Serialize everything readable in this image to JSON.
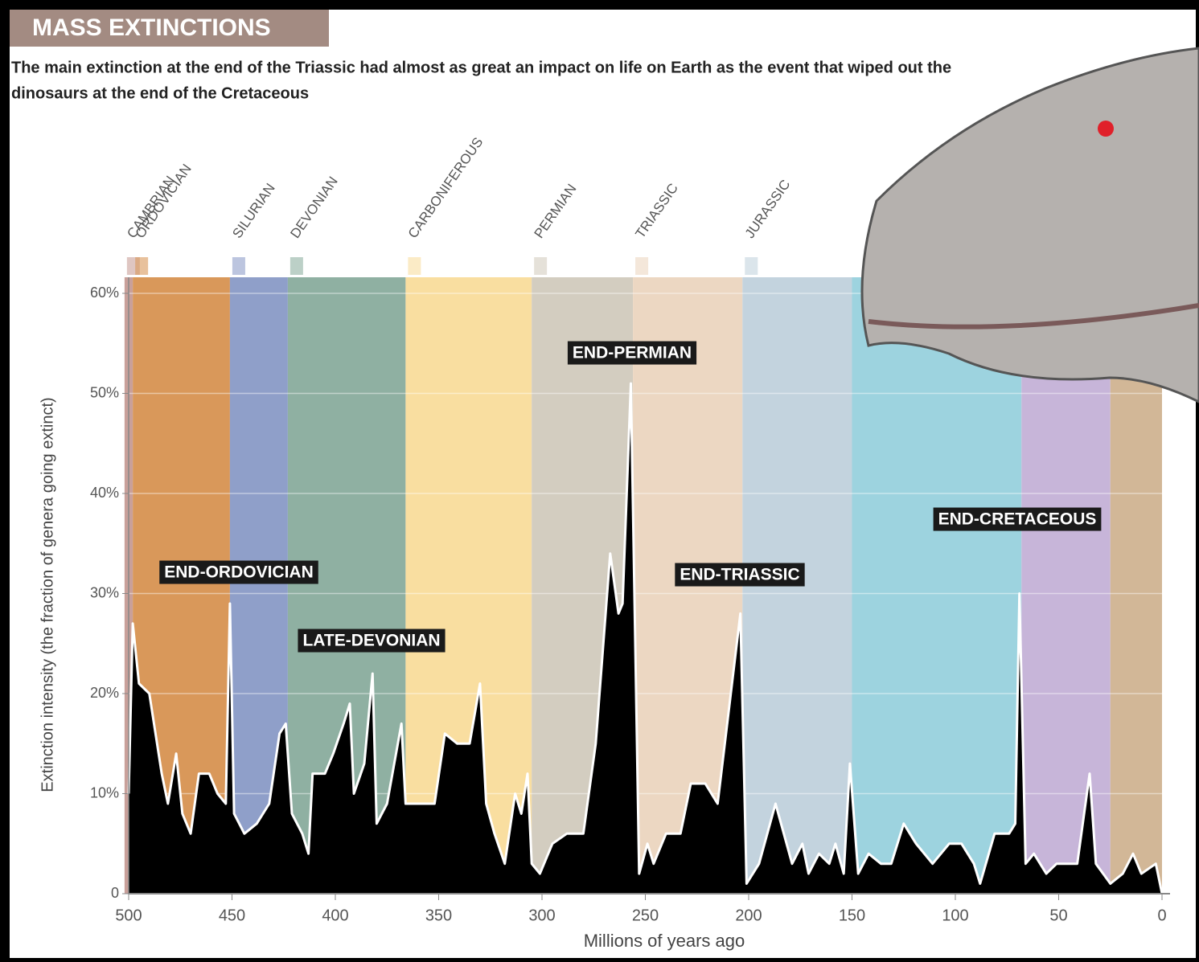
{
  "chart_data": {
    "type": "area",
    "title": "MASS EXTINCTIONS",
    "subtitle": [
      "The main extinction at the end of the Triassic had almost as great an impact on life on Earth as the event that wiped out the",
      "dinosaurs at the end of the Cretaceous"
    ],
    "x_label": "Millions of years ago",
    "y_label": "Extinction intensity (the fraction of genera going extinct)",
    "xlim": [
      500,
      0
    ],
    "ylim": [
      0,
      60
    ],
    "xticks": [
      500,
      450,
      400,
      350,
      300,
      250,
      200,
      150,
      100,
      50,
      0
    ],
    "yticks": [
      0,
      {
        "value": 10,
        "label": "10%"
      },
      {
        "value": 20,
        "label": "20%"
      },
      {
        "value": 30,
        "label": "30%"
      },
      {
        "value": 40,
        "label": "40%"
      },
      {
        "value": 50,
        "label": "50%"
      },
      {
        "value": 60,
        "label": "60%"
      }
    ],
    "grid": true,
    "color": "#000000",
    "periods": [
      {
        "name": "CAMBRIAN",
        "start": 502,
        "end": 498,
        "color": "#c9a09a"
      },
      {
        "name": "ORDOVICIAN",
        "start": 498,
        "end": 451,
        "color": "#d9985a"
      },
      {
        "name": "SILURIAN",
        "start": 451,
        "end": 423,
        "color": "#8f9fc9"
      },
      {
        "name": "DEVONIAN",
        "start": 423,
        "end": 366,
        "color": "#8fb0a2"
      },
      {
        "name": "CARBONIFEROUS",
        "start": 366,
        "end": 305,
        "color": "#f9dea0"
      },
      {
        "name": "PERMIAN",
        "start": 305,
        "end": 256,
        "color": "#d3cdc0"
      },
      {
        "name": "TRIASSIC",
        "start": 256,
        "end": 203,
        "color": "#ecd7c2"
      },
      {
        "name": "JURASSIC",
        "start": 203,
        "end": 150,
        "color": "#c3d3de"
      },
      {
        "name": null,
        "start": 150,
        "end": 68,
        "color": "#9dd3df"
      },
      {
        "name": null,
        "start": 68,
        "end": 25,
        "color": "#c7b5d9"
      },
      {
        "name": null,
        "start": 25,
        "end": 0,
        "color": "#d2b797"
      }
    ],
    "annotations": [
      "END-ORDOVICIAN",
      "LATE-DEVONIAN",
      "END-PERMIAN",
      "END-TRIASSIC",
      "END-CRETACEOUS"
    ],
    "x": [
      500,
      498,
      495,
      490,
      484,
      481,
      477,
      474,
      470,
      466,
      461,
      457,
      453,
      451,
      449,
      444,
      438,
      432,
      427,
      424,
      421,
      416,
      413,
      411,
      405,
      401,
      396,
      393,
      391,
      386,
      382,
      380,
      375,
      368,
      366,
      352,
      347,
      341,
      335,
      330,
      327,
      323,
      318,
      313,
      310,
      307,
      305,
      301,
      295,
      288,
      280,
      274,
      267,
      263,
      261,
      257,
      253,
      249,
      246,
      240,
      233,
      228,
      221,
      215,
      204,
      201,
      195,
      187,
      179,
      174,
      171,
      166,
      161,
      158,
      154,
      151,
      147,
      142,
      136,
      131,
      125,
      119,
      111,
      103,
      97,
      91,
      88,
      81,
      74,
      71,
      69,
      66,
      62,
      56,
      51,
      41,
      35,
      32,
      25,
      19,
      14,
      10,
      3,
      0
    ],
    "values": [
      10,
      27,
      21,
      20,
      12,
      9,
      14,
      8,
      6,
      12,
      12,
      10,
      9,
      29,
      8,
      6,
      7,
      9,
      16,
      17,
      8,
      6,
      4,
      12,
      12,
      14,
      17,
      19,
      10,
      13,
      22,
      7,
      9,
      17,
      9,
      9,
      16,
      15,
      15,
      21,
      9,
      6,
      3,
      10,
      8,
      12,
      3,
      2,
      5,
      6,
      6,
      15,
      34,
      28,
      29,
      51,
      2,
      5,
      3,
      6,
      6,
      11,
      11,
      9,
      28,
      1,
      3,
      9,
      3,
      5,
      2,
      4,
      3,
      5,
      2,
      13,
      2,
      4,
      3,
      3,
      7,
      5,
      3,
      5,
      5,
      3,
      1,
      6,
      6,
      7,
      30,
      3,
      4,
      2,
      3,
      3,
      12,
      3,
      1,
      2,
      4,
      2,
      3,
      0
    ]
  }
}
